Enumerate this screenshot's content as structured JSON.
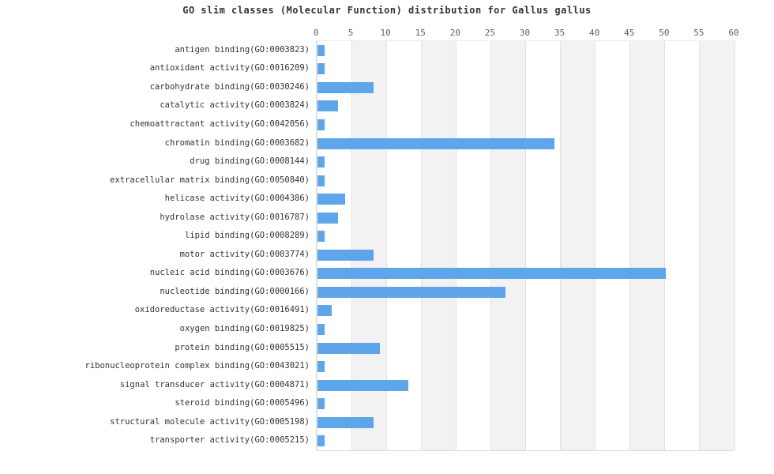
{
  "chart_data": {
    "type": "bar",
    "orientation": "horizontal",
    "title": "GO slim classes (Molecular Function) distribution for Gallus gallus",
    "categories": [
      "antigen binding(GO:0003823)",
      "antioxidant activity(GO:0016209)",
      "carbohydrate binding(GO:0030246)",
      "catalytic activity(GO:0003824)",
      "chemoattractant activity(GO:0042056)",
      "chromatin binding(GO:0003682)",
      "drug binding(GO:0008144)",
      "extracellular matrix binding(GO:0050840)",
      "helicase activity(GO:0004386)",
      "hydrolase activity(GO:0016787)",
      "lipid binding(GO:0008289)",
      "motor activity(GO:0003774)",
      "nucleic acid binding(GO:0003676)",
      "nucleotide binding(GO:0000166)",
      "oxidoreductase activity(GO:0016491)",
      "oxygen binding(GO:0019825)",
      "protein binding(GO:0005515)",
      "ribonucleoprotein complex binding(GO:0043021)",
      "signal transducer activity(GO:0004871)",
      "steroid binding(GO:0005496)",
      "structural molecule activity(GO:0005198)",
      "transporter activity(GO:0005215)"
    ],
    "values": [
      1,
      1,
      8,
      3,
      1,
      34,
      1,
      1,
      4,
      3,
      1,
      8,
      50,
      27,
      2,
      1,
      9,
      1,
      13,
      1,
      8,
      1
    ],
    "xlabel": "",
    "ylabel": "",
    "xlim": [
      0,
      60
    ],
    "x_ticks": [
      0,
      5,
      10,
      15,
      20,
      25,
      30,
      35,
      40,
      45,
      50,
      55,
      60
    ],
    "legend_position": "none",
    "grid": "alternating vertical bands every 5 units with light gridlines",
    "colors": {
      "bar": "#5fa5ea",
      "stripe_band": "#f2f2f3",
      "gridline": "#e2e2e5",
      "title_text": "#333333",
      "tick_text": "#606060",
      "label_text": "#333333",
      "background": "#ffffff"
    }
  }
}
